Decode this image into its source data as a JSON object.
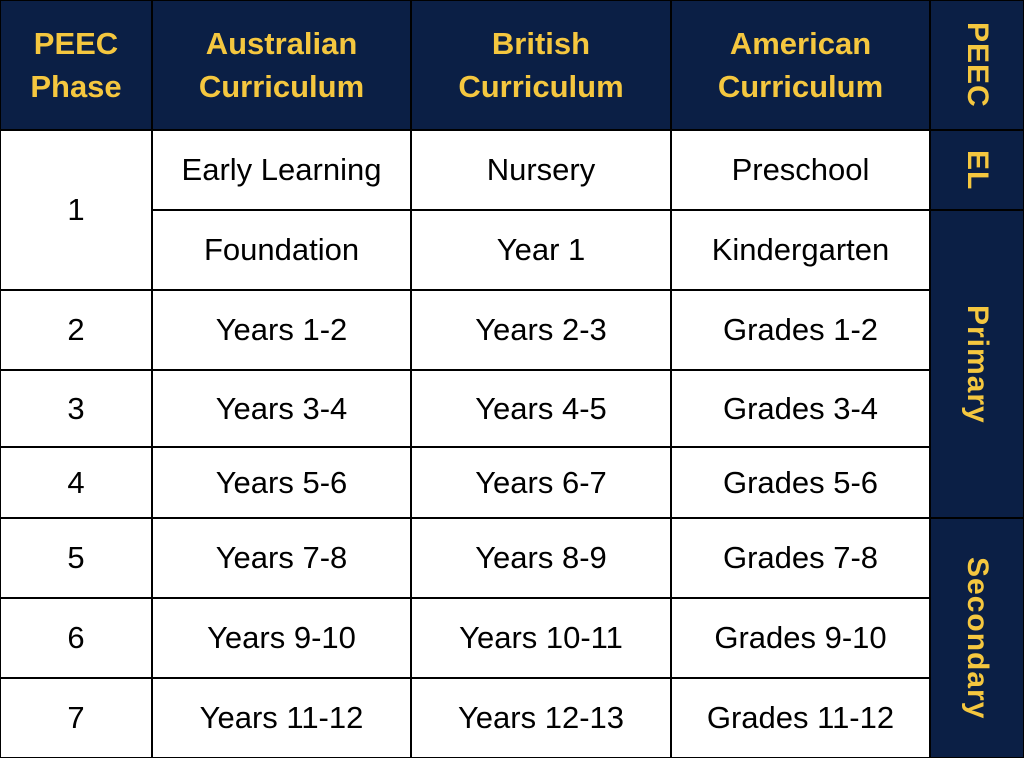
{
  "colors": {
    "header_bg": "#0b1f45",
    "header_text": "#f5c73f",
    "cell_bg": "#ffffff",
    "border": "#000000"
  },
  "headers": [
    "PEEC Phase",
    "Australian Curriculum",
    "British Curriculum",
    "American Curriculum",
    "PEEC"
  ],
  "stages": {
    "el": "EL",
    "primary": "Primary",
    "secondary": "Secondary"
  },
  "rows": [
    {
      "phase": "1",
      "au": "Early Learning",
      "uk": "Nursery",
      "us": "Preschool"
    },
    {
      "phase": "",
      "au": "Foundation",
      "uk": "Year 1",
      "us": "Kindergarten"
    },
    {
      "phase": "2",
      "au": "Years 1-2",
      "uk": "Years 2-3",
      "us": "Grades 1-2"
    },
    {
      "phase": "3",
      "au": "Years 3-4",
      "uk": "Years 4-5",
      "us": "Grades 3-4"
    },
    {
      "phase": "4",
      "au": "Years 5-6",
      "uk": "Years 6-7",
      "us": "Grades 5-6"
    },
    {
      "phase": "5",
      "au": "Years 7-8",
      "uk": "Years 8-9",
      "us": "Grades 7-8"
    },
    {
      "phase": "6",
      "au": "Years 9-10",
      "uk": "Years 10-11",
      "us": "Grades 9-10"
    },
    {
      "phase": "7",
      "au": "Years 11-12",
      "uk": "Years 12-13",
      "us": "Grades 11-12"
    }
  ]
}
